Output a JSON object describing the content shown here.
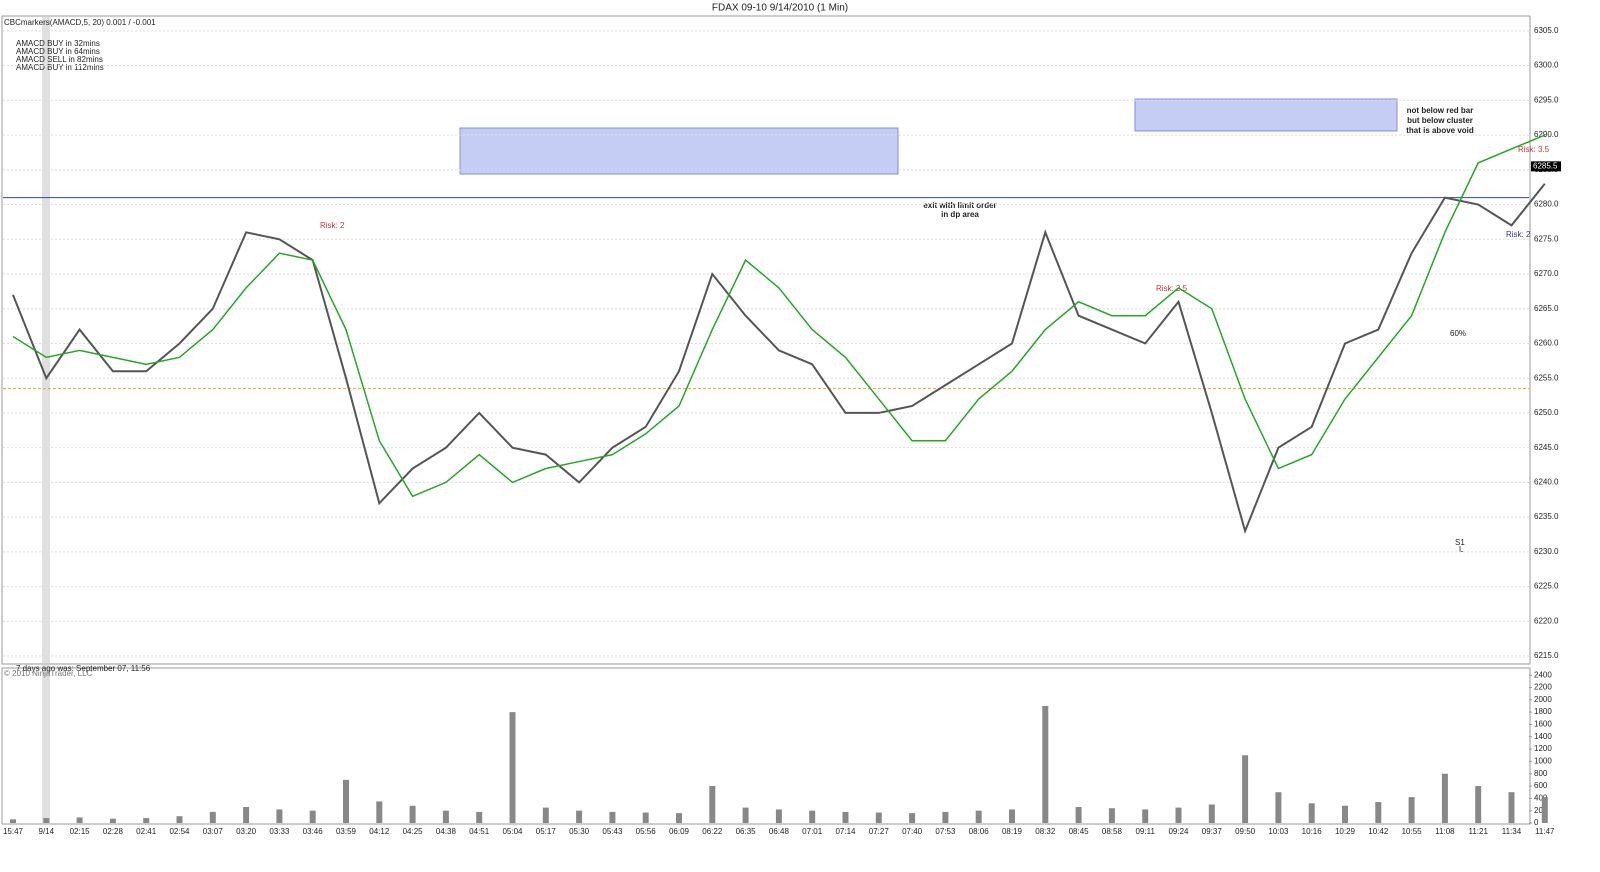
{
  "chart_data": {
    "type": "line",
    "title": "FDAX 09-10  9/14/2010 (1 Min)",
    "indicator": "CBCmarkers(AMACD,5, 20) 0.001 / -0.001",
    "notes": [
      "AMACD BUY in 32mins",
      "AMACD BUY in 64mins",
      "AMACD SELL in 82mins",
      "AMACD BUY in 112mins"
    ],
    "annotations": [
      "exit with limit order",
      "in dp area",
      "not below red bar",
      "but below cluster",
      "that is above void",
      "Risk: 2",
      "Risk: 2.5",
      "Risk: 3.5",
      "Risk: 2",
      "7 days ago was: September 07, 11:56",
      "© 2010 NinjaTrader, LLC",
      "S1",
      "L",
      "60%"
    ],
    "last_price": {
      "value": 6285.5,
      "label": "6285.5"
    },
    "categories": [
      "15:47",
      "9/14",
      "02:15",
      "02:28",
      "02:41",
      "02:54",
      "03:07",
      "03:20",
      "03:33",
      "03:46",
      "03:59",
      "04:12",
      "04:25",
      "04:38",
      "04:51",
      "05:04",
      "05:17",
      "05:30",
      "05:43",
      "05:56",
      "06:09",
      "06:22",
      "06:35",
      "06:48",
      "07:01",
      "07:14",
      "07:27",
      "07:40",
      "07:53",
      "08:06",
      "08:19",
      "08:32",
      "08:45",
      "08:58",
      "09:11",
      "09:24",
      "09:37",
      "09:50",
      "10:03",
      "10:16",
      "10:29",
      "10:42",
      "10:55",
      "11:08",
      "11:21",
      "11:34",
      "11:47"
    ],
    "series": [
      {
        "color": "#555555",
        "values": [
          6267,
          6255,
          6262,
          6256,
          6256,
          6260,
          6265,
          6276,
          6275,
          6272,
          6255,
          6237,
          6242,
          6245,
          6250,
          6245,
          6244,
          6240,
          6245,
          6248,
          6256,
          6270,
          6264,
          6259,
          6257,
          6250,
          6250,
          6251,
          6254,
          6257,
          6260,
          6276,
          6264,
          6262,
          6260,
          6266,
          6250,
          6233,
          6245,
          6248,
          6260,
          6262,
          6273,
          6281,
          6280,
          6277,
          6283
        ]
      },
      {
        "color": "#22aa22",
        "values": [
          6261,
          6258,
          6259,
          6258,
          6257,
          6258,
          6262,
          6268,
          6273,
          6272,
          6262,
          6246,
          6238,
          6240,
          6244,
          6240,
          6242,
          6243,
          6244,
          6247,
          6251,
          6262,
          6272,
          6268,
          6262,
          6258,
          6252,
          6246,
          6246,
          6252,
          6256,
          6262,
          6266,
          6264,
          6264,
          6268,
          6265,
          6252,
          6242,
          6244,
          6252,
          6258,
          6264,
          6276,
          6286,
          6288,
          6290
        ]
      }
    ],
    "levels": [
      {
        "value": 6281,
        "color": "#3040c0"
      },
      {
        "value": 6253.5,
        "color": "#e8a030"
      }
    ],
    "ylim": [
      6214,
      6307
    ],
    "yticks": [
      {
        "value": 6215,
        "label": "6215.0"
      },
      {
        "value": 6220,
        "label": "6220.0"
      },
      {
        "value": 6225,
        "label": "6225.0"
      },
      {
        "value": 6230,
        "label": "6230.0"
      },
      {
        "value": 6235,
        "label": "6235.0"
      },
      {
        "value": 6240,
        "label": "6240.0"
      },
      {
        "value": 6245,
        "label": "6245.0"
      },
      {
        "value": 6250,
        "label": "6250.0"
      },
      {
        "value": 6255,
        "label": "6255.0"
      },
      {
        "value": 6260,
        "label": "6260.0"
      },
      {
        "value": 6265,
        "label": "6265.0"
      },
      {
        "value": 6270,
        "label": "6270.0"
      },
      {
        "value": 6275,
        "label": "6275.0"
      },
      {
        "value": 6280,
        "label": "6280.0"
      },
      {
        "value": 6285,
        "label": "6285.0"
      },
      {
        "value": 6290,
        "label": "6290.0"
      },
      {
        "value": 6295,
        "label": "6295.0"
      },
      {
        "value": 6300,
        "label": "6300.0"
      },
      {
        "value": 6305,
        "label": "6305.0"
      }
    ],
    "grid": true,
    "volume": {
      "color": "#888888",
      "values": [
        60,
        80,
        90,
        70,
        80,
        110,
        180,
        260,
        220,
        200,
        700,
        350,
        280,
        200,
        180,
        1800,
        250,
        200,
        180,
        170,
        160,
        600,
        250,
        220,
        200,
        180,
        170,
        160,
        180,
        200,
        220,
        1900,
        260,
        240,
        220,
        250,
        300,
        1100,
        500,
        320,
        280,
        340,
        420,
        800,
        600,
        500,
        420
      ],
      "ylim": [
        0,
        2500
      ],
      "yticks": [
        0,
        200,
        400,
        600,
        800,
        1000,
        1200,
        1400,
        1600,
        1800,
        2000,
        2200,
        2400
      ]
    }
  }
}
